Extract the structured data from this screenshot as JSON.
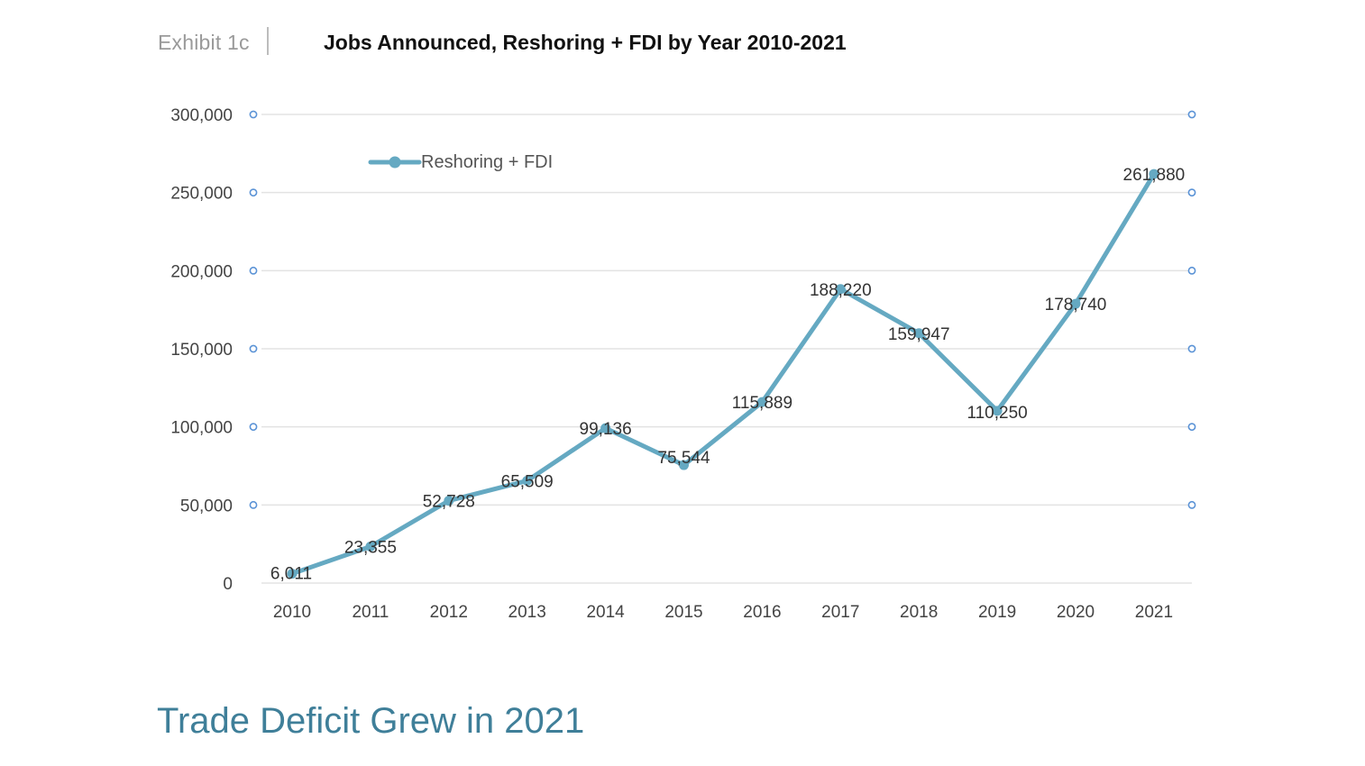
{
  "header": {
    "exhibit_label": "Exhibit 1c",
    "title": "Jobs Announced, Reshoring + FDI by Year 2010-2021"
  },
  "footer": {
    "heading": "Trade Deficit Grew in 2021"
  },
  "colors": {
    "series_line": "#65a9c2",
    "gridline": "#e3e3e3",
    "handle_dot": "#5b93d6",
    "heading": "#3f7f99"
  },
  "chart_data": {
    "type": "line",
    "title": "Jobs Announced, Reshoring + FDI by Year 2010-2021",
    "xlabel": "",
    "ylabel": "",
    "categories": [
      "2010",
      "2011",
      "2012",
      "2013",
      "2014",
      "2015",
      "2016",
      "2017",
      "2018",
      "2019",
      "2020",
      "2021"
    ],
    "series": [
      {
        "name": "Reshoring + FDI",
        "values": [
          6011,
          23355,
          52728,
          65509,
          99136,
          75544,
          115889,
          188220,
          159947,
          110250,
          178740,
          261880
        ],
        "labels": [
          "6,011",
          "23,355",
          "52,728",
          "65,509",
          "99,136",
          "75,544",
          "115,889",
          "188,220",
          "159,947",
          "110,250",
          "178,740",
          "261,880"
        ]
      }
    ],
    "ylim": [
      0,
      300000
    ],
    "yticks": [
      0,
      50000,
      100000,
      150000,
      200000,
      250000,
      300000
    ],
    "ytick_labels": [
      "0",
      "50,000",
      "100,000",
      "150,000",
      "200,000",
      "250,000",
      "300,000"
    ],
    "grid": true,
    "legend": "top-left"
  }
}
